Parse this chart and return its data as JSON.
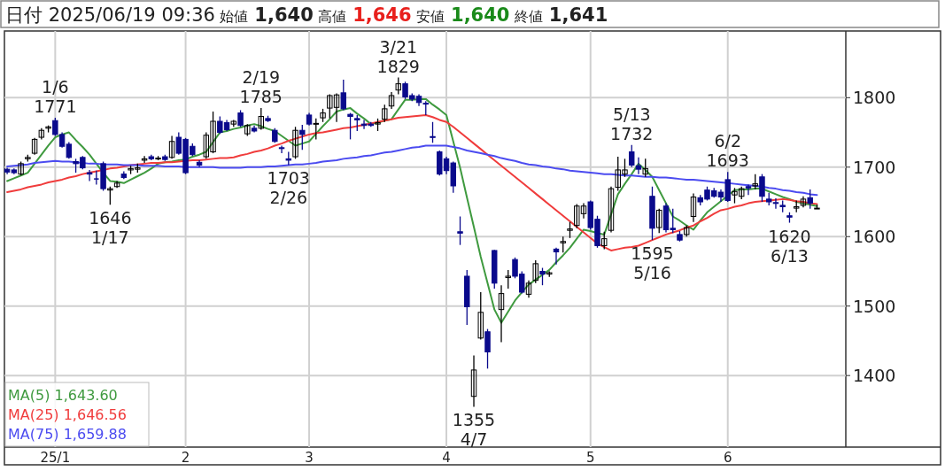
{
  "chart_data": {
    "type": "candlestick",
    "title": "日付 2025/06/19 09:36 始値 1,640 高値 1,646 安値 1,640 終値 1,641",
    "categories": [
      null,
      null,
      null,
      null,
      null,
      null,
      null,
      "25/1",
      null,
      null,
      null,
      null,
      null,
      null,
      null,
      null,
      null,
      null,
      null,
      null,
      null,
      null,
      null,
      null,
      null,
      null,
      "2",
      null,
      null,
      null,
      null,
      null,
      null,
      null,
      null,
      null,
      null,
      null,
      null,
      null,
      null,
      null,
      null,
      null,
      "3",
      null,
      null,
      null,
      null,
      null,
      null,
      null,
      null,
      null,
      null,
      null,
      null,
      null,
      null,
      null,
      null,
      null,
      null,
      null,
      "4",
      null,
      null,
      null,
      null,
      null,
      null,
      null,
      null,
      null,
      null,
      null,
      null,
      null,
      null,
      null,
      null,
      null,
      null,
      null,
      null,
      "5",
      null,
      null,
      null,
      null,
      null,
      null,
      null,
      null,
      null,
      null,
      null,
      null,
      null,
      null,
      null,
      null,
      null,
      null,
      null,
      "6",
      null,
      null,
      null,
      null,
      null,
      null,
      null,
      null,
      null,
      null,
      null,
      null,
      null
    ],
    "ohlc": [
      [
        1697,
        1699,
        1690,
        1693
      ],
      [
        1696,
        1698,
        1690,
        1692
      ],
      [
        1690,
        1708,
        1688,
        1705
      ],
      [
        1712,
        1718,
        1708,
        1714
      ],
      [
        1720,
        1742,
        1718,
        1740
      ],
      [
        1743,
        1756,
        1740,
        1753
      ],
      [
        1756,
        1760,
        1750,
        1758
      ],
      [
        1767,
        1771,
        1745,
        1747
      ],
      [
        1747,
        1750,
        1728,
        1730
      ],
      [
        1733,
        1736,
        1712,
        1714
      ],
      [
        1708,
        1712,
        1692,
        1705
      ],
      [
        1714,
        1716,
        1697,
        1699
      ],
      [
        1692,
        1696,
        1680,
        1690
      ],
      [
        1683,
        1695,
        1675,
        1683
      ],
      [
        1705,
        1708,
        1666,
        1669
      ],
      [
        1667,
        1672,
        1646,
        1669
      ],
      [
        1672,
        1680,
        1670,
        1677
      ],
      [
        1690,
        1694,
        1683,
        1685
      ],
      [
        1696,
        1702,
        1690,
        1698
      ],
      [
        1697,
        1705,
        1692,
        1699
      ],
      [
        1710,
        1716,
        1706,
        1712
      ],
      [
        1715,
        1718,
        1710,
        1712
      ],
      [
        1712,
        1716,
        1710,
        1713
      ],
      [
        1715,
        1718,
        1709,
        1711
      ],
      [
        1714,
        1745,
        1712,
        1737
      ],
      [
        1743,
        1750,
        1718,
        1720
      ],
      [
        1740,
        1742,
        1690,
        1692
      ],
      [
        1730,
        1734,
        1716,
        1718
      ],
      [
        1707,
        1710,
        1700,
        1703
      ],
      [
        1715,
        1750,
        1712,
        1746
      ],
      [
        1722,
        1780,
        1720,
        1766
      ],
      [
        1766,
        1773,
        1748,
        1750
      ],
      [
        1764,
        1768,
        1752,
        1754
      ],
      [
        1762,
        1768,
        1758,
        1766
      ],
      [
        1778,
        1782,
        1758,
        1760
      ],
      [
        1748,
        1762,
        1745,
        1760
      ],
      [
        1756,
        1760,
        1750,
        1752
      ],
      [
        1756,
        1785,
        1754,
        1773
      ],
      [
        1770,
        1774,
        1765,
        1767
      ],
      [
        1753,
        1756,
        1735,
        1737
      ],
      [
        1728,
        1731,
        1720,
        1727
      ],
      [
        1712,
        1722,
        1703,
        1710
      ],
      [
        1715,
        1758,
        1712,
        1753
      ],
      [
        1753,
        1761,
        1725,
        1747
      ],
      [
        1775,
        1778,
        1760,
        1762
      ],
      [
        1762,
        1770,
        1740,
        1763
      ],
      [
        1771,
        1784,
        1765,
        1778
      ],
      [
        1785,
        1805,
        1770,
        1803
      ],
      [
        1786,
        1806,
        1765,
        1804
      ],
      [
        1807,
        1826,
        1782,
        1784
      ],
      [
        1776,
        1778,
        1740,
        1773
      ],
      [
        1770,
        1775,
        1752,
        1768
      ],
      [
        1762,
        1768,
        1755,
        1760
      ],
      [
        1762,
        1765,
        1758,
        1760
      ],
      [
        1762,
        1770,
        1752,
        1764
      ],
      [
        1769,
        1790,
        1765,
        1784
      ],
      [
        1788,
        1808,
        1784,
        1803
      ],
      [
        1811,
        1829,
        1805,
        1820
      ],
      [
        1820,
        1823,
        1798,
        1801
      ],
      [
        1803,
        1806,
        1795,
        1798
      ],
      [
        1802,
        1805,
        1788,
        1793
      ],
      [
        1792,
        1795,
        1775,
        1791
      ],
      [
        1744,
        1765,
        1735,
        1743
      ],
      [
        1722,
        1724,
        1688,
        1690
      ],
      [
        1712,
        1715,
        1690,
        1695
      ],
      [
        1706,
        1708,
        1663,
        1673
      ],
      [
        1607,
        1629,
        1588,
        1605
      ],
      [
        1543,
        1552,
        1473,
        1499
      ],
      [
        1370,
        1429,
        1355,
        1408
      ],
      [
        1454,
        1520,
        1452,
        1491
      ],
      [
        1463,
        1467,
        1410,
        1434
      ],
      [
        1580,
        1581,
        1525,
        1533
      ],
      [
        1495,
        1530,
        1448,
        1518
      ],
      [
        1541,
        1552,
        1525,
        1543
      ],
      [
        1567,
        1570,
        1540,
        1543
      ],
      [
        1546,
        1550,
        1518,
        1520
      ],
      [
        1517,
        1537,
        1512,
        1533
      ],
      [
        1537,
        1566,
        1533,
        1561
      ],
      [
        1550,
        1555,
        1530,
        1546
      ],
      [
        1546,
        1550,
        1542,
        1548
      ],
      [
        1582,
        1584,
        1560,
        1578
      ],
      [
        1591,
        1600,
        1577,
        1593
      ],
      [
        1609,
        1621,
        1598,
        1611
      ],
      [
        1616,
        1647,
        1612,
        1644
      ],
      [
        1633,
        1648,
        1626,
        1644
      ],
      [
        1650,
        1652,
        1610,
        1613
      ],
      [
        1625,
        1630,
        1584,
        1587
      ],
      [
        1587,
        1607,
        1582,
        1597
      ],
      [
        1609,
        1672,
        1606,
        1669
      ],
      [
        1671,
        1715,
        1666,
        1696
      ],
      [
        1690,
        1712,
        1686,
        1696
      ],
      [
        1722,
        1732,
        1700,
        1703
      ],
      [
        1702,
        1714,
        1690,
        1697
      ],
      [
        1690,
        1712,
        1686,
        1698
      ],
      [
        1658,
        1672,
        1595,
        1612
      ],
      [
        1613,
        1640,
        1605,
        1638
      ],
      [
        1644,
        1648,
        1606,
        1610
      ],
      [
        1612,
        1640,
        1605,
        1610
      ],
      [
        1603,
        1608,
        1593,
        1595
      ],
      [
        1603,
        1616,
        1600,
        1613
      ],
      [
        1629,
        1662,
        1621,
        1657
      ],
      [
        1656,
        1660,
        1645,
        1650
      ],
      [
        1667,
        1672,
        1652,
        1654
      ],
      [
        1666,
        1670,
        1656,
        1658
      ],
      [
        1664,
        1668,
        1650,
        1657
      ],
      [
        1682,
        1693,
        1650,
        1652
      ],
      [
        1660,
        1670,
        1648,
        1665
      ],
      [
        1658,
        1672,
        1654,
        1669
      ],
      [
        1672,
        1675,
        1660,
        1670
      ],
      [
        1673,
        1690,
        1668,
        1676
      ],
      [
        1686,
        1690,
        1650,
        1658
      ],
      [
        1654,
        1663,
        1645,
        1650
      ],
      [
        1649,
        1655,
        1640,
        1648
      ],
      [
        1645,
        1652,
        1635,
        1643
      ],
      [
        1630,
        1635,
        1620,
        1628
      ],
      [
        1641,
        1652,
        1635,
        1643
      ],
      [
        1645,
        1658,
        1642,
        1654
      ],
      [
        1656,
        1668,
        1640,
        1648
      ],
      [
        1640,
        1646,
        1640,
        1641
      ]
    ],
    "series": [
      {
        "name": "MA(5) 1,643.60",
        "type": "line",
        "color": "#3f9a3f",
        "values": [
          1680,
          1684,
          1688,
          1692,
          1705,
          1718,
          1731,
          1743,
          1747,
          1750,
          1739,
          1729,
          1718,
          1705,
          1692,
          1680,
          1679,
          1677,
          1682,
          1687,
          1692,
          1698,
          1705,
          1707,
          1708,
          1710,
          1711,
          1715,
          1718,
          1722,
          1736,
          1750,
          1752,
          1755,
          1757,
          1760,
          1762,
          1759,
          1755,
          1752,
          1745,
          1738,
          1731,
          1734,
          1737,
          1748,
          1759,
          1769,
          1780,
          1783,
          1785,
          1777,
          1770,
          1762,
          1764,
          1767,
          1769,
          1783,
          1797,
          1797,
          1798,
          1798,
          1790,
          1783,
          1775,
          1737,
          1699,
          1656,
          1614,
          1571,
          1533,
          1495,
          1476,
          1492,
          1508,
          1520,
          1531,
          1538,
          1545,
          1552,
          1563,
          1573,
          1584,
          1597,
          1610,
          1608,
          1605,
          1603,
          1632,
          1661,
          1676,
          1690,
          1705,
          1696,
          1686,
          1667,
          1648,
          1629,
          1623,
          1616,
          1610,
          1623,
          1635,
          1643,
          1651,
          1659,
          1667,
          1668,
          1668,
          1669,
          1669,
          1665,
          1661,
          1657,
          1654,
          1650,
          1648,
          1646,
          1644
        ]
      },
      {
        "name": "MA(25) 1,646.56",
        "type": "line",
        "color": "#f03c3c",
        "values": [
          1664,
          1666,
          1668,
          1671,
          1673,
          1675,
          1678,
          1680,
          1682,
          1685,
          1687,
          1690,
          1692,
          1694,
          1696,
          1698,
          1699,
          1701,
          1703,
          1704,
          1705,
          1706,
          1706,
          1707,
          1707,
          1708,
          1709,
          1710,
          1710,
          1711,
          1712,
          1713,
          1713,
          1714,
          1717,
          1719,
          1722,
          1724,
          1727,
          1731,
          1734,
          1738,
          1741,
          1744,
          1747,
          1749,
          1750,
          1752,
          1754,
          1756,
          1757,
          1759,
          1761,
          1763,
          1765,
          1767,
          1769,
          1771,
          1772,
          1773,
          1774,
          1775,
          1772,
          1768,
          1765,
          1758,
          1750,
          1742,
          1734,
          1726,
          1718,
          1710,
          1702,
          1694,
          1686,
          1678,
          1670,
          1662,
          1654,
          1646,
          1638,
          1630,
          1622,
          1614,
          1606,
          1598,
          1590,
          1585,
          1580,
          1582,
          1584,
          1585,
          1587,
          1591,
          1595,
          1599,
          1603,
          1606,
          1609,
          1613,
          1616,
          1622,
          1627,
          1633,
          1638,
          1640,
          1643,
          1645,
          1648,
          1650,
          1651,
          1652,
          1653,
          1654,
          1653,
          1651,
          1650,
          1648,
          1647
        ]
      },
      {
        "name": "MA(75) 1,659.88",
        "type": "line",
        "color": "#4b4bf0",
        "values": [
          1701,
          1702,
          1703,
          1704,
          1706,
          1707,
          1708,
          1709,
          1708,
          1708,
          1707,
          1706,
          1705,
          1705,
          1704,
          1704,
          1704,
          1703,
          1703,
          1703,
          1702,
          1702,
          1702,
          1701,
          1701,
          1701,
          1700,
          1700,
          1700,
          1700,
          1700,
          1699,
          1699,
          1699,
          1699,
          1700,
          1700,
          1700,
          1701,
          1701,
          1702,
          1703,
          1704,
          1704,
          1705,
          1706,
          1708,
          1709,
          1710,
          1712,
          1713,
          1714,
          1716,
          1717,
          1719,
          1721,
          1722,
          1724,
          1726,
          1728,
          1729,
          1731,
          1731,
          1731,
          1731,
          1729,
          1727,
          1724,
          1722,
          1720,
          1718,
          1716,
          1713,
          1711,
          1709,
          1706,
          1704,
          1703,
          1701,
          1700,
          1698,
          1697,
          1695,
          1694,
          1693,
          1692,
          1691,
          1690,
          1690,
          1689,
          1688,
          1688,
          1687,
          1686,
          1686,
          1685,
          1685,
          1684,
          1683,
          1682,
          1682,
          1681,
          1680,
          1679,
          1678,
          1677,
          1676,
          1675,
          1674,
          1673,
          1672,
          1670,
          1669,
          1667,
          1666,
          1664,
          1663,
          1661,
          1660
        ]
      }
    ],
    "ylim": [
      1297,
      1896
    ],
    "yticks": [
      1400,
      1500,
      1600,
      1700,
      1800
    ],
    "grid": true,
    "legend": "bottom left",
    "annotations": [
      {
        "text": "1/6\n1771",
        "y": 1771
      },
      {
        "text": "1646\n1/17",
        "y": 1646
      },
      {
        "text": "2/19\n1785",
        "y": 1785
      },
      {
        "text": "1703\n2/26",
        "y": 1703
      },
      {
        "text": "3/21\n1829",
        "y": 1829
      },
      {
        "text": "1355\n4/7",
        "y": 1355
      },
      {
        "text": "5/13\n1732",
        "y": 1732
      },
      {
        "text": "1595\n5/16",
        "y": 1595
      },
      {
        "text": "6/2\n1693",
        "y": 1693
      },
      {
        "text": "1620\n6/13",
        "y": 1620
      }
    ]
  }
}
